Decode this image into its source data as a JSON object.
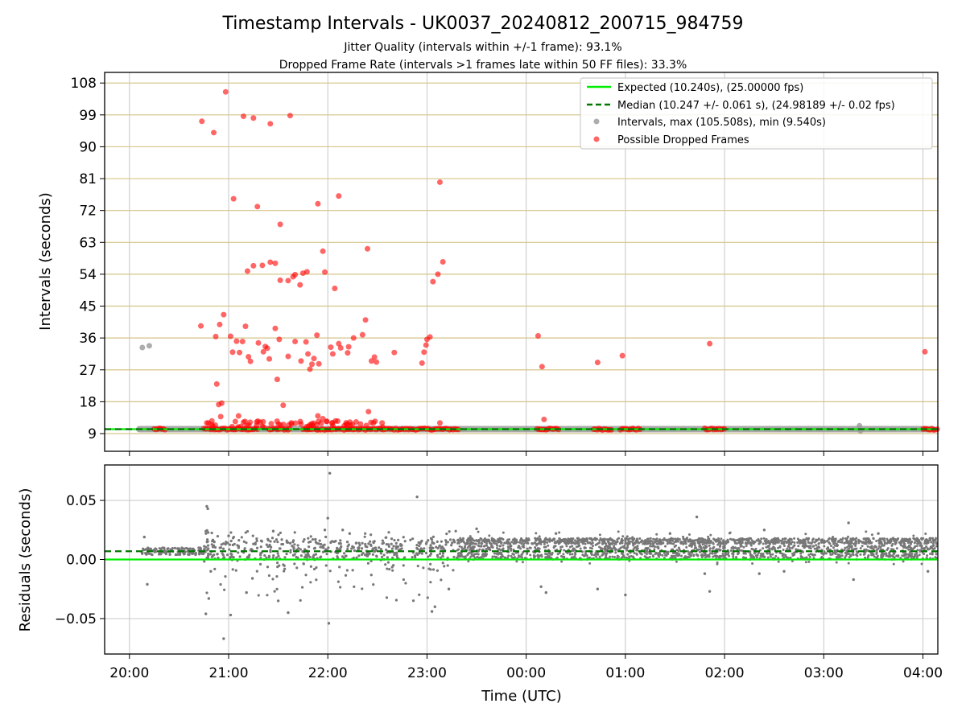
{
  "title": "Timestamp Intervals - UK0037_20240812_200715_984759",
  "subtitle_1": "Jitter Quality (intervals within +/-1 frame): 93.1%",
  "subtitle_2": "Dropped Frame Rate (intervals >1 frames late within 50 FF files): 33.3%",
  "colors": {
    "expected": "#00ee00",
    "median": "#007700",
    "intervals": "#999999",
    "dropped": "#ff0000",
    "residuals": "#777777",
    "hgrid_top": "#d4c487",
    "grid": "#c8c8c8"
  },
  "chart_data": [
    {
      "type": "scatter",
      "panel": "intervals",
      "ylabel": "Intervals (seconds)",
      "xlabel": "",
      "x_unit": "hours since 20:00 UTC",
      "xlim": [
        -0.25,
        8.15
      ],
      "ylim": [
        4,
        111
      ],
      "yticks": [
        9,
        18,
        27,
        36,
        45,
        54,
        63,
        72,
        81,
        90,
        99,
        108
      ],
      "ytick_labels": [
        "9",
        "18",
        "27",
        "36",
        "45",
        "54",
        "63",
        "72",
        "81",
        "90",
        "99",
        "108"
      ],
      "grid": "on",
      "legend_position": "top-right",
      "legend": [
        "Expected (10.240s), (25.00000 fps)",
        "Median (10.247 +/- 0.061 s), (24.98189 +/- 0.02 fps)",
        "Intervals, max (105.508s), min (9.540s)",
        "Possible Dropped Frames"
      ],
      "expected": 10.24,
      "median": 10.247,
      "series": [
        {
          "name": "Intervals, max (105.508s), min (9.540s)",
          "points": [
            [
              0.13,
              33.3
            ],
            [
              0.2,
              33.8
            ],
            [
              7.36,
              11.2
            ],
            [
              7.37,
              9.8
            ]
          ]
        },
        {
          "name": "Possible Dropped Frames",
          "points": [
            [
              0.73,
              97.2
            ],
            [
              0.85,
              94.0
            ],
            [
              0.97,
              105.5
            ],
            [
              1.15,
              98.6
            ],
            [
              1.25,
              98.1
            ],
            [
              1.42,
              96.5
            ],
            [
              1.62,
              98.8
            ],
            [
              2.11,
              76.1
            ],
            [
              1.05,
              75.3
            ],
            [
              1.29,
              73.1
            ],
            [
              1.9,
              73.9
            ],
            [
              3.13,
              80.0
            ],
            [
              1.52,
              68.1
            ],
            [
              1.95,
              60.5
            ],
            [
              2.4,
              61.2
            ],
            [
              1.19,
              54.9
            ],
            [
              1.25,
              56.4
            ],
            [
              1.34,
              56.5
            ],
            [
              1.42,
              57.4
            ],
            [
              1.47,
              57.1
            ],
            [
              1.52,
              52.3
            ],
            [
              1.6,
              52.2
            ],
            [
              1.65,
              53.3
            ],
            [
              1.67,
              53.9
            ],
            [
              1.72,
              51.0
            ],
            [
              1.75,
              54.3
            ],
            [
              1.79,
              54.7
            ],
            [
              1.97,
              54.6
            ],
            [
              2.07,
              50.0
            ],
            [
              3.06,
              51.9
            ],
            [
              3.11,
              54.0
            ],
            [
              3.16,
              57.5
            ],
            [
              0.72,
              39.4
            ],
            [
              0.87,
              36.4
            ],
            [
              0.91,
              39.8
            ],
            [
              0.95,
              42.6
            ],
            [
              1.02,
              36.5
            ],
            [
              1.08,
              35.1
            ],
            [
              1.17,
              39.3
            ],
            [
              1.04,
              32.0
            ],
            [
              1.11,
              31.9
            ],
            [
              1.14,
              35.0
            ],
            [
              1.2,
              30.7
            ],
            [
              1.22,
              29.4
            ],
            [
              1.3,
              34.6
            ],
            [
              1.35,
              32.1
            ],
            [
              1.37,
              33.6
            ],
            [
              1.39,
              33.1
            ],
            [
              1.41,
              30.1
            ],
            [
              1.47,
              38.7
            ],
            [
              1.49,
              24.3
            ],
            [
              1.51,
              35.6
            ],
            [
              1.55,
              17.0
            ],
            [
              1.6,
              30.8
            ],
            [
              1.67,
              35.0
            ],
            [
              1.73,
              29.5
            ],
            [
              1.78,
              34.9
            ],
            [
              1.8,
              31.5
            ],
            [
              1.82,
              27.2
            ],
            [
              1.84,
              28.6
            ],
            [
              1.86,
              30.2
            ],
            [
              1.89,
              36.8
            ],
            [
              1.91,
              28.7
            ],
            [
              2.03,
              33.4
            ],
            [
              2.05,
              31.5
            ],
            [
              2.11,
              34.4
            ],
            [
              2.13,
              33.2
            ],
            [
              2.2,
              31.8
            ],
            [
              2.21,
              33.5
            ],
            [
              2.26,
              36.0
            ],
            [
              2.35,
              36.9
            ],
            [
              2.38,
              41.1
            ],
            [
              2.44,
              29.5
            ],
            [
              2.47,
              30.6
            ],
            [
              2.49,
              29.2
            ],
            [
              2.67,
              31.9
            ],
            [
              2.95,
              28.9
            ],
            [
              2.97,
              32.0
            ],
            [
              2.99,
              34.0
            ],
            [
              3.0,
              35.6
            ],
            [
              3.03,
              36.3
            ],
            [
              4.12,
              36.6
            ],
            [
              4.16,
              27.9
            ],
            [
              4.72,
              29.1
            ],
            [
              4.97,
              31.0
            ],
            [
              5.85,
              34.4
            ],
            [
              8.02,
              32.1
            ],
            [
              0.9,
              17.2
            ],
            [
              0.93,
              17.6
            ],
            [
              0.88,
              23.0
            ],
            [
              2.41,
              15.2
            ],
            [
              0.78,
              12.0
            ],
            [
              0.92,
              13.8
            ],
            [
              1.1,
              14.0
            ],
            [
              1.15,
              12.2
            ],
            [
              1.43,
              11.8
            ],
            [
              1.9,
              14.0
            ],
            [
              1.95,
              13.2
            ],
            [
              2.46,
              12.0
            ],
            [
              3.13,
              12.0
            ],
            [
              4.18,
              13.0
            ]
          ],
          "band": {
            "y": 10.25,
            "segments": [
              [
                0.25,
                0.37
              ],
              [
                0.75,
                1.3
              ],
              [
                1.4,
                1.63
              ],
              [
                1.75,
                3.32
              ],
              [
                4.11,
                4.33
              ],
              [
                4.68,
                4.87
              ],
              [
                4.95,
                5.15
              ],
              [
                5.8,
                6.0
              ],
              [
                8.0,
                8.15
              ]
            ]
          }
        }
      ]
    },
    {
      "type": "scatter",
      "panel": "residuals",
      "ylabel": "Residuals (seconds)",
      "xlabel": "Time (UTC)",
      "x_unit": "hours since 20:00 UTC",
      "xlim": [
        -0.25,
        8.15
      ],
      "ylim": [
        -0.08,
        0.08
      ],
      "yticks": [
        0.05,
        0.0,
        -0.05
      ],
      "ytick_labels": [
        "0.05",
        "0.00",
        "−0.05"
      ],
      "xticks": [
        0,
        1,
        2,
        3,
        4,
        5,
        6,
        7,
        8
      ],
      "xtick_labels": [
        "20:00",
        "21:00",
        "22:00",
        "23:00",
        "00:00",
        "01:00",
        "02:00",
        "03:00",
        "04:00"
      ],
      "grid": "on",
      "expected": 0.0,
      "median": 0.007,
      "outliers": [
        [
          0.78,
          0.045
        ],
        [
          0.79,
          0.043
        ],
        [
          0.95,
          -0.067
        ],
        [
          1.02,
          -0.047
        ],
        [
          1.0,
          0.02
        ],
        [
          1.6,
          -0.045
        ],
        [
          2.0,
          0.035
        ],
        [
          2.02,
          0.073
        ],
        [
          2.01,
          -0.054
        ],
        [
          2.9,
          0.053
        ],
        [
          3.05,
          -0.044
        ],
        [
          3.08,
          -0.04
        ],
        [
          1.45,
          0.024
        ],
        [
          1.97,
          0.025
        ],
        [
          2.15,
          0.025
        ],
        [
          1.5,
          -0.035
        ],
        [
          0.77,
          -0.046
        ],
        [
          0.8,
          -0.033
        ],
        [
          0.82,
          -0.01
        ],
        [
          1.18,
          -0.028
        ],
        [
          1.24,
          -0.016
        ],
        [
          3.22,
          -0.025
        ],
        [
          4.15,
          -0.023
        ],
        [
          4.2,
          -0.028
        ],
        [
          4.72,
          -0.025
        ],
        [
          5.0,
          -0.03
        ],
        [
          5.72,
          0.036
        ],
        [
          5.8,
          -0.012
        ],
        [
          5.85,
          -0.027
        ],
        [
          6.4,
          0.025
        ],
        [
          7.25,
          0.031
        ],
        [
          7.3,
          -0.017
        ],
        [
          7.55,
          0.022
        ],
        [
          7.7,
          0.018
        ],
        [
          0.15,
          0.019
        ],
        [
          0.18,
          -0.021
        ],
        [
          0.99,
          0.014
        ],
        [
          1.1,
          0.01
        ],
        [
          2.22,
          0.022
        ],
        [
          3.5,
          0.026
        ],
        [
          4.3,
          0.022
        ],
        [
          5.45,
          0.022
        ],
        [
          6.35,
          -0.012
        ],
        [
          6.6,
          -0.01
        ],
        [
          8.05,
          -0.01
        ]
      ]
    }
  ]
}
